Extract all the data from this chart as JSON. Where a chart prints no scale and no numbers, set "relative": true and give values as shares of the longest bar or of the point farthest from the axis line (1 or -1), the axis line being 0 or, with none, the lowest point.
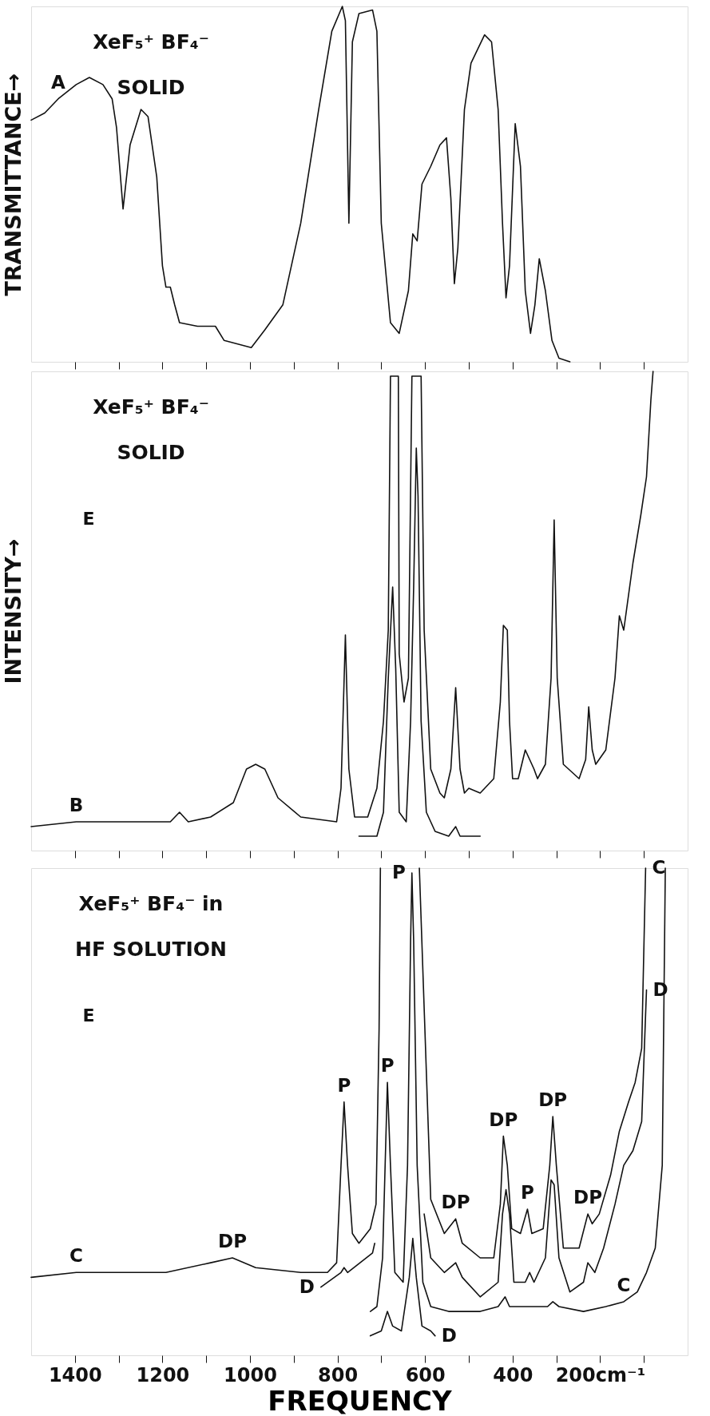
{
  "chart_data": [
    {
      "type": "line",
      "title": "XeF₅⁺ BF₄⁻\nSOLID",
      "ylabel": "TRANSMITTANCE→",
      "relative": true,
      "tick_labels": false,
      "xlim": [
        1500,
        0
      ],
      "xticks": [
        {
          "value": 1400,
          "label": null
        },
        {
          "value": 1300,
          "label": null
        },
        {
          "value": 1200,
          "label": null
        },
        {
          "value": 1100,
          "label": null
        },
        {
          "value": 1000,
          "label": null
        },
        {
          "value": 900,
          "label": null
        },
        {
          "value": 800,
          "label": null
        },
        {
          "value": 700,
          "label": null
        },
        {
          "value": 600,
          "label": null
        },
        {
          "value": 500,
          "label": null
        },
        {
          "value": 400,
          "label": null
        },
        {
          "value": 300,
          "label": null
        },
        {
          "value": 200,
          "label": null
        },
        {
          "value": 100,
          "label": null
        }
      ],
      "series": [
        {
          "color": "#111111",
          "x": [
            1500,
            1469,
            1438,
            1397,
            1367,
            1336,
            1315,
            1305,
            1290,
            1274,
            1249,
            1233,
            1213,
            1200,
            1192,
            1182,
            1172,
            1161,
            1120,
            1079,
            1059,
            997,
            966,
            925,
            884,
            843,
            813,
            789,
            782,
            774,
            766,
            751,
            720,
            710,
            700,
            679,
            659,
            638,
            628,
            618,
            607,
            587,
            566,
            551,
            541,
            533,
            525,
            510,
            495,
            464,
            448,
            433,
            423,
            415,
            407,
            394,
            382,
            371,
            359,
            349,
            339,
            325,
            310,
            294,
            269
          ],
          "values": [
            0.68,
            0.7,
            0.74,
            0.78,
            0.8,
            0.78,
            0.74,
            0.66,
            0.43,
            0.61,
            0.71,
            0.69,
            0.52,
            0.27,
            0.21,
            0.21,
            0.16,
            0.11,
            0.1,
            0.1,
            0.06,
            0.04,
            0.09,
            0.16,
            0.39,
            0.71,
            0.93,
            1.0,
            0.96,
            0.39,
            0.9,
            0.98,
            0.99,
            0.93,
            0.39,
            0.11,
            0.08,
            0.2,
            0.36,
            0.34,
            0.5,
            0.55,
            0.61,
            0.63,
            0.46,
            0.22,
            0.32,
            0.71,
            0.84,
            0.92,
            0.9,
            0.71,
            0.39,
            0.18,
            0.27,
            0.67,
            0.55,
            0.2,
            0.08,
            0.16,
            0.29,
            0.2,
            0.06,
            0.01,
            0
          ]
        }
      ],
      "annotations": [
        {
          "text": "A",
          "x": 1438,
          "y": 0.74
        }
      ]
    },
    {
      "type": "line",
      "title": "XeF₅⁺ BF₄⁻\nSOLID",
      "ylabel": "INTENSITY→",
      "relative": true,
      "tick_labels": false,
      "xlim": [
        1500,
        0
      ],
      "xticks": [
        {
          "value": 1400,
          "label": null
        },
        {
          "value": 1300,
          "label": null
        },
        {
          "value": 1200,
          "label": null
        },
        {
          "value": 1100,
          "label": null
        },
        {
          "value": 1000,
          "label": null
        },
        {
          "value": 900,
          "label": null
        },
        {
          "value": 800,
          "label": null
        },
        {
          "value": 700,
          "label": null
        },
        {
          "value": 600,
          "label": null
        },
        {
          "value": 500,
          "label": null
        },
        {
          "value": 400,
          "label": null
        },
        {
          "value": 300,
          "label": null
        },
        {
          "value": 200,
          "label": null
        },
        {
          "value": 100,
          "label": null
        }
      ],
      "series": [
        {
          "color": "#111111",
          "x": [
            1500,
            1397,
            1295,
            1182,
            1161,
            1141,
            1090,
            1038,
            1008,
            987,
            966,
            936,
            884,
            802,
            792,
            782,
            774,
            761,
            731,
            710,
            695,
            684,
            679,
            661,
            659,
            648,
            638,
            630,
            609,
            602,
            587,
            566,
            556,
            541,
            530,
            520,
            510,
            500,
            474,
            443,
            428,
            421,
            412,
            407,
            400,
            387,
            371,
            361,
            351,
            343,
            325,
            312,
            305,
            298,
            284,
            248,
            233,
            226,
            218,
            210,
            187,
            166,
            156,
            146,
            125,
            107,
            94,
            84,
            79
          ],
          "values": [
            0.05,
            0.06,
            0.06,
            0.06,
            0.08,
            0.06,
            0.07,
            0.1,
            0.17,
            0.18,
            0.17,
            0.11,
            0.07,
            0.06,
            0.13,
            0.45,
            0.17,
            0.07,
            0.07,
            0.13,
            0.27,
            0.46,
            0.99,
            0.99,
            0.41,
            0.31,
            0.36,
            0.99,
            0.99,
            0.46,
            0.17,
            0.12,
            0.11,
            0.17,
            0.34,
            0.17,
            0.12,
            0.13,
            0.12,
            0.15,
            0.31,
            0.47,
            0.46,
            0.27,
            0.15,
            0.15,
            0.21,
            0.19,
            0.17,
            0.15,
            0.18,
            0.36,
            0.69,
            0.36,
            0.18,
            0.15,
            0.19,
            0.3,
            0.21,
            0.18,
            0.21,
            0.36,
            0.49,
            0.46,
            0.6,
            0.7,
            0.78,
            0.94,
            1.0
          ]
        },
        {
          "color": "#111111",
          "x": [
            751,
            710,
            695,
            684,
            674,
            667,
            659,
            643,
            633,
            626,
            620,
            616,
            609,
            597,
            577,
            546,
            530,
            520,
            474
          ],
          "values": [
            0.03,
            0.03,
            0.08,
            0.36,
            0.55,
            0.38,
            0.08,
            0.06,
            0.27,
            0.55,
            0.84,
            0.74,
            0.27,
            0.08,
            0.04,
            0.03,
            0.05,
            0.03,
            0.03
          ]
        }
      ],
      "annotations": [
        {
          "text": "B",
          "x": 1397,
          "y": 0.06
        },
        "E"
      ]
    },
    {
      "type": "line",
      "title": "XeF₅⁺ BF₄⁻ in\nHF SOLUTION",
      "xlabel": "FREQUENCY",
      "relative": true,
      "tick_labels": "x",
      "xlim": [
        1500,
        0
      ],
      "xticks": [
        1400,
        {
          "value": 1300,
          "label": null
        },
        1200,
        {
          "value": 1100,
          "label": null
        },
        1000,
        {
          "value": 900,
          "label": null
        },
        800,
        {
          "value": 700,
          "label": null
        },
        600,
        {
          "value": 500,
          "label": null
        },
        400,
        {
          "value": 300,
          "label": null
        },
        {
          "value": 200,
          "label": "200cm⁻¹"
        },
        {
          "value": 100,
          "label": null
        }
      ],
      "series": [
        {
          "color": "#111111",
          "x": [
            1500,
            1397,
            1295,
            1192,
            1090,
            1040,
            987,
            884,
            823,
            802,
            792,
            785,
            777,
            766,
            751,
            725,
            712,
            705,
            702,
            659,
            613,
            587,
            556,
            530,
            515,
            474,
            443,
            428,
            421,
            412,
            402,
            382,
            366,
            356,
            330,
            315,
            308,
            300,
            284,
            248,
            228,
            218,
            202,
            176,
            156,
            135,
            120,
            105,
            96
          ],
          "values": [
            0.16,
            0.17,
            0.17,
            0.17,
            0.19,
            0.2,
            0.18,
            0.17,
            0.17,
            0.19,
            0.39,
            0.52,
            0.39,
            0.25,
            0.23,
            0.26,
            0.31,
            0.67,
            1.0,
            null,
            1.0,
            0.32,
            0.25,
            0.28,
            0.23,
            0.2,
            0.2,
            0.31,
            0.45,
            0.39,
            0.26,
            0.25,
            0.3,
            0.25,
            0.26,
            0.39,
            0.49,
            0.39,
            0.22,
            0.22,
            0.29,
            0.27,
            0.29,
            0.37,
            0.46,
            0.52,
            0.56,
            0.63,
            1.0
          ]
        },
        {
          "color": "#111111",
          "x": [
            838,
            792,
            785,
            777,
            720,
            715,
            659,
            602,
            587,
            556,
            530,
            515,
            474,
            433,
            423,
            415,
            407,
            397,
            371,
            361,
            351,
            325,
            312,
            305,
            294,
            269,
            238,
            228,
            212,
            192,
            166,
            146,
            125,
            105,
            94
          ],
          "values": [
            0.14,
            0.17,
            0.18,
            0.17,
            0.21,
            0.23,
            null,
            0.29,
            0.2,
            0.17,
            0.19,
            0.16,
            0.12,
            0.15,
            0.29,
            0.34,
            0.29,
            0.15,
            0.15,
            0.17,
            0.15,
            0.2,
            0.36,
            0.35,
            0.2,
            0.13,
            0.15,
            0.19,
            0.17,
            0.22,
            0.31,
            0.39,
            0.42,
            0.48,
            0.75
          ]
        },
        {
          "color": "#111111",
          "x": [
            725,
            710,
            697,
            686,
            679,
            669,
            650,
            640,
            633,
            630,
            626,
            618,
            605,
            587,
            546,
            474,
            433,
            417,
            407,
            320,
            308,
            294,
            238,
            187,
            146,
            115,
            94,
            74,
            58,
            51
          ],
          "values": [
            0.09,
            0.1,
            0.2,
            0.56,
            0.39,
            0.17,
            0.15,
            0.39,
            0.85,
            0.99,
            0.85,
            0.39,
            0.15,
            0.1,
            0.09,
            0.09,
            0.1,
            0.12,
            0.1,
            0.1,
            0.11,
            0.1,
            0.09,
            0.1,
            0.11,
            0.13,
            0.17,
            0.22,
            0.39,
            1.0
          ]
        },
        {
          "color": "#111111",
          "x": [
            725,
            700,
            686,
            674,
            654,
            636,
            628,
            620,
            607,
            587,
            577
          ],
          "values": [
            0.04,
            0.05,
            0.09,
            0.06,
            0.05,
            0.16,
            0.24,
            0.16,
            0.06,
            0.05,
            0.04
          ]
        }
      ],
      "annotations": [
        {
          "text": "C",
          "x": 1397,
          "y": 0.17
        },
        {
          "text": "DP",
          "x": 1040,
          "y": 0.2
        },
        {
          "text": "P",
          "x": 785,
          "y": 0.52
        },
        {
          "text": "D",
          "x": 838,
          "y": 0.14
        },
        {
          "text": "P",
          "x": 686,
          "y": 0.56
        },
        {
          "text": "P",
          "x": 630,
          "y": 0.99
        },
        {
          "text": "DP",
          "x": 530,
          "y": 0.28
        },
        {
          "text": "DP",
          "x": 421,
          "y": 0.45
        },
        {
          "text": "P",
          "x": 366,
          "y": 0.3
        },
        {
          "text": "DP",
          "x": 308,
          "y": 0.49
        },
        {
          "text": "DP",
          "x": 228,
          "y": 0.29
        },
        {
          "text": "C",
          "x": 96,
          "y": 1.0
        },
        {
          "text": "D",
          "x": 94,
          "y": 0.75
        },
        {
          "text": "C",
          "x": 146,
          "y": 0.11
        },
        {
          "text": "D",
          "x": 577,
          "y": 0.04
        },
        "E"
      ]
    }
  ]
}
